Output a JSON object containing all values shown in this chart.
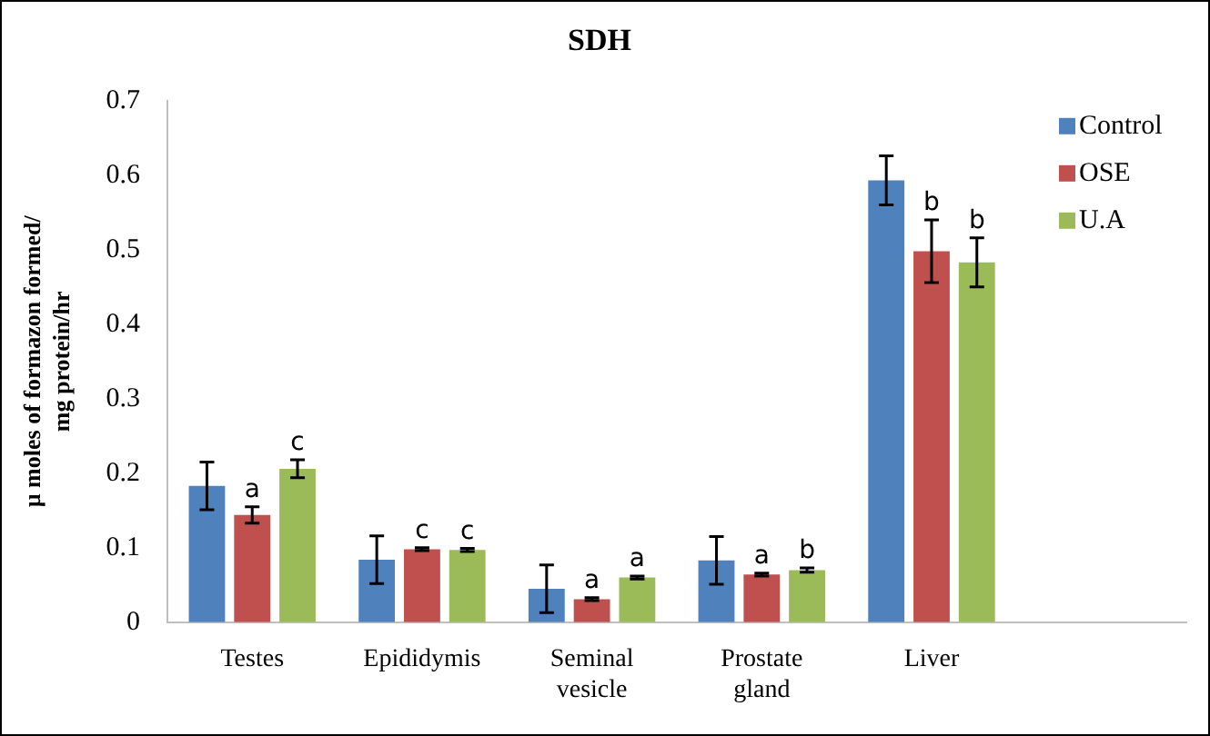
{
  "chart_data": {
    "type": "bar",
    "title": "SDH",
    "ylabel": "µ moles of formazon formed/ mg protein/hr",
    "categories": [
      "Testes",
      "Epididymis",
      "Seminal vesicle",
      "Prostate gland",
      "Liver",
      null
    ],
    "series": [
      {
        "name": "Control",
        "color": "#4f81bd",
        "values": [
          0.183,
          0.084,
          0.045,
          0.083,
          0.593,
          null
        ],
        "errors": [
          0.032,
          0.032,
          0.032,
          0.032,
          0.033,
          null
        ]
      },
      {
        "name": "OSE",
        "color": "#c0504d",
        "values": [
          0.144,
          0.098,
          0.031,
          0.064,
          0.498,
          null
        ],
        "errors": [
          0.011,
          0.002,
          0.002,
          0.002,
          0.042,
          null
        ],
        "value_labels": [
          "a",
          "c",
          "a",
          "a",
          "b",
          null
        ]
      },
      {
        "name": "U.A",
        "color": "#9bbb59",
        "values": [
          0.206,
          0.097,
          0.06,
          0.07,
          0.483,
          null
        ],
        "errors": [
          0.012,
          0.002,
          0.002,
          0.003,
          0.033,
          null
        ],
        "value_labels": [
          "c",
          "c",
          "a",
          "b",
          "b",
          null
        ]
      }
    ],
    "ylim": [
      0,
      0.7
    ],
    "yticks": [
      0,
      0.1,
      0.2,
      0.3,
      0.4,
      0.5,
      0.6,
      0.7
    ],
    "grid": false,
    "legend": "top right"
  }
}
